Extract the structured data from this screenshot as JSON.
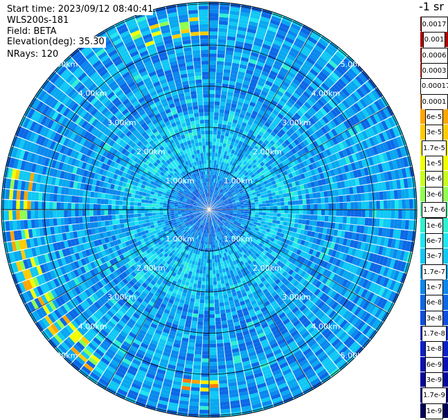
{
  "info": {
    "start_time": "Start time: 2023/09/12 08:40:41",
    "site": "WLS200s-181",
    "field": "Field: BETA",
    "elevation": "Elevation(deg): 35.30",
    "nrays": "NRays: 120"
  },
  "units": "-1 sr",
  "range_rings": [
    {
      "label": "1.00km",
      "km": 1
    },
    {
      "label": "2.00km",
      "km": 2
    },
    {
      "label": "3.00km",
      "km": 3
    },
    {
      "label": "4.00km",
      "km": 4
    },
    {
      "label": "5.00km",
      "km": 5
    }
  ],
  "colorbar": [
    {
      "label": "0.0017",
      "color": "#8b0000"
    },
    {
      "label": "0.001",
      "color": "#b00000"
    },
    {
      "label": "0.0006",
      "color": "#d80000"
    },
    {
      "label": "0.0003",
      "color": "#ff1a00"
    },
    {
      "label": "0.00017",
      "color": "#ff4800"
    },
    {
      "label": "0.0001",
      "color": "#ff7a00"
    },
    {
      "label": "6e-5",
      "color": "#ffa500"
    },
    {
      "label": "3e-5",
      "color": "#ffcc00"
    },
    {
      "label": "1.7e-5",
      "color": "#ffee00"
    },
    {
      "label": "1e-5",
      "color": "#f2ff00"
    },
    {
      "label": "6e-6",
      "color": "#c8ff20"
    },
    {
      "label": "3e-6",
      "color": "#90ff50"
    },
    {
      "label": "1.7e-6",
      "color": "#5cffa0"
    },
    {
      "label": "1e-6",
      "color": "#30f0d0"
    },
    {
      "label": "6e-7",
      "color": "#22e6f0"
    },
    {
      "label": "3e-7",
      "color": "#10c8f5"
    },
    {
      "label": "1.7e-7",
      "color": "#08a8f0"
    },
    {
      "label": "1e-7",
      "color": "#0a88ee"
    },
    {
      "label": "6e-8",
      "color": "#0c68e6"
    },
    {
      "label": "3e-8",
      "color": "#0d4ee0"
    },
    {
      "label": "1.7e-8",
      "color": "#0c36d4"
    },
    {
      "label": "1e-8",
      "color": "#0a22c6"
    },
    {
      "label": "6e-9",
      "color": "#0812b4"
    },
    {
      "label": "3e-9",
      "color": "#06089c"
    },
    {
      "label": "1.7e-9",
      "color": "#040480"
    },
    {
      "label": "1e-9",
      "color": "#020258"
    }
  ]
}
